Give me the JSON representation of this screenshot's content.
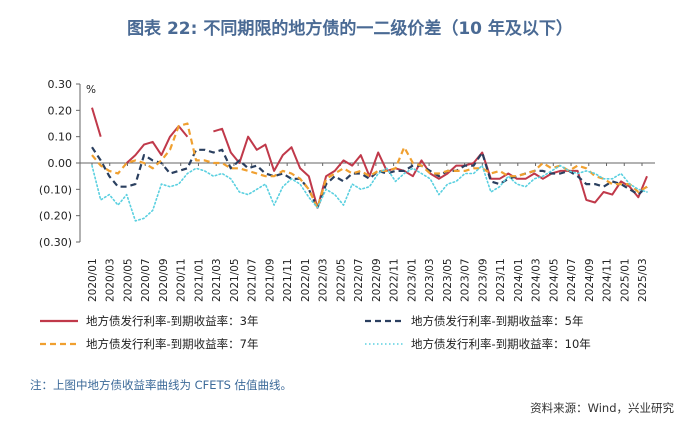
{
  "page": {
    "note": "注：上图中地方债收益率曲线为 CFETS 估值曲线。",
    "source": "资料来源：Wind，兴业研究"
  },
  "chart_data": {
    "type": "line",
    "title": "图表 22: 不同期限的地方债的一二级价差（10 年及以下）",
    "unit_label": "%",
    "xlabel": "",
    "ylabel": "",
    "ylim": [
      -0.3,
      0.3
    ],
    "yticks": [
      0.3,
      0.2,
      0.1,
      0.0,
      -0.1,
      -0.2,
      -0.3
    ],
    "ytick_labels": [
      "0.30",
      "0.20",
      "0.10",
      "0.00",
      "(0.10)",
      "(0.20)",
      "(0.30)"
    ],
    "x_labels": [
      "2020/01",
      "2020/03",
      "2020/05",
      "2020/07",
      "2020/09",
      "2020/11",
      "2021/01",
      "2021/03",
      "2021/05",
      "2021/07",
      "2021/09",
      "2021/11",
      "2022/01",
      "2022/03",
      "2022/05",
      "2022/07",
      "2022/09",
      "2022/11",
      "2023/01",
      "2023/03",
      "2023/05",
      "2023/07",
      "2023/09",
      "2023/11",
      "2024/01",
      "2024/03",
      "2024/05",
      "2024/07",
      "2024/09",
      "2024/11",
      "2025/01",
      "2025/03"
    ],
    "grid": false,
    "legend_position": "bottom",
    "series": [
      {
        "name": "地方债发行利率-到期收益率：3年",
        "color": "#c0394a",
        "dash": "solid",
        "values": [
          0.21,
          0.1,
          null,
          null,
          0.0,
          0.03,
          0.07,
          0.08,
          0.03,
          0.1,
          0.14,
          0.1,
          null,
          null,
          0.12,
          0.13,
          0.04,
          0.0,
          0.1,
          0.05,
          0.07,
          -0.03,
          0.03,
          0.06,
          -0.02,
          -0.05,
          -0.17,
          -0.05,
          -0.03,
          0.01,
          -0.01,
          0.03,
          -0.05,
          0.04,
          -0.03,
          -0.02,
          -0.03,
          -0.05,
          0.01,
          -0.04,
          -0.06,
          -0.04,
          -0.01,
          -0.01,
          0.0,
          0.04,
          -0.06,
          -0.06,
          -0.04,
          -0.06,
          -0.06,
          -0.04,
          -0.06,
          -0.04,
          -0.03,
          -0.03,
          -0.03,
          -0.14,
          -0.15,
          -0.11,
          -0.12,
          -0.07,
          -0.09,
          -0.13,
          -0.05
        ]
      },
      {
        "name": "地方债发行利率-到期收益率：5年",
        "color": "#2a3f5f",
        "dash": "dashed",
        "values": [
          0.06,
          0.01,
          -0.05,
          -0.09,
          -0.09,
          -0.08,
          0.03,
          0.01,
          0.0,
          -0.04,
          -0.03,
          -0.02,
          0.05,
          0.05,
          0.04,
          0.05,
          -0.02,
          0.01,
          -0.02,
          -0.01,
          -0.04,
          -0.05,
          -0.04,
          -0.06,
          -0.06,
          -0.1,
          -0.17,
          -0.08,
          -0.05,
          -0.07,
          -0.04,
          -0.04,
          -0.06,
          -0.03,
          -0.04,
          -0.03,
          -0.03,
          -0.01,
          -0.01,
          -0.03,
          -0.05,
          -0.03,
          -0.03,
          -0.01,
          -0.01,
          0.04,
          -0.07,
          -0.08,
          -0.06,
          -0.05,
          -0.04,
          -0.03,
          -0.03,
          -0.04,
          -0.04,
          -0.03,
          -0.05,
          -0.08,
          -0.08,
          -0.09,
          -0.07,
          -0.08,
          -0.1,
          -0.12,
          -0.09
        ]
      },
      {
        "name": "地方债发行利率-到期收益率：7年",
        "color": "#f0a030",
        "dash": "dashed",
        "values": [
          0.03,
          -0.01,
          -0.03,
          -0.04,
          0.0,
          0.01,
          0.0,
          -0.02,
          0.01,
          0.05,
          0.14,
          0.15,
          0.01,
          0.01,
          0.0,
          0.0,
          -0.02,
          -0.02,
          -0.03,
          -0.04,
          -0.05,
          -0.05,
          -0.03,
          -0.04,
          -0.06,
          -0.1,
          -0.17,
          -0.06,
          -0.04,
          -0.02,
          -0.04,
          -0.03,
          -0.05,
          -0.03,
          -0.03,
          -0.02,
          0.06,
          0.0,
          -0.01,
          -0.04,
          -0.04,
          -0.03,
          -0.03,
          -0.03,
          -0.02,
          -0.02,
          -0.04,
          -0.03,
          -0.05,
          -0.05,
          -0.04,
          -0.03,
          0.0,
          -0.02,
          -0.01,
          -0.03,
          -0.01,
          -0.02,
          -0.05,
          -0.06,
          -0.08,
          -0.08,
          -0.08,
          -0.11,
          -0.09
        ]
      },
      {
        "name": "地方债发行利率-到期收益率：10年",
        "color": "#5ad0e0",
        "dash": "dotted",
        "values": [
          -0.01,
          -0.14,
          -0.12,
          -0.16,
          -0.12,
          -0.22,
          -0.21,
          -0.18,
          -0.08,
          -0.09,
          -0.08,
          -0.04,
          -0.02,
          -0.03,
          -0.05,
          -0.04,
          -0.06,
          -0.11,
          -0.12,
          -0.1,
          -0.08,
          -0.16,
          -0.09,
          -0.06,
          -0.08,
          -0.13,
          -0.17,
          -0.1,
          -0.12,
          -0.16,
          -0.08,
          -0.1,
          -0.09,
          -0.04,
          -0.02,
          -0.07,
          -0.04,
          -0.02,
          -0.04,
          -0.06,
          -0.12,
          -0.08,
          -0.07,
          -0.04,
          -0.04,
          -0.01,
          -0.11,
          -0.09,
          -0.05,
          -0.08,
          -0.09,
          -0.06,
          -0.05,
          -0.03,
          -0.01,
          -0.03,
          -0.04,
          -0.03,
          -0.04,
          -0.06,
          -0.06,
          -0.04,
          -0.08,
          -0.1,
          -0.11
        ]
      }
    ]
  }
}
